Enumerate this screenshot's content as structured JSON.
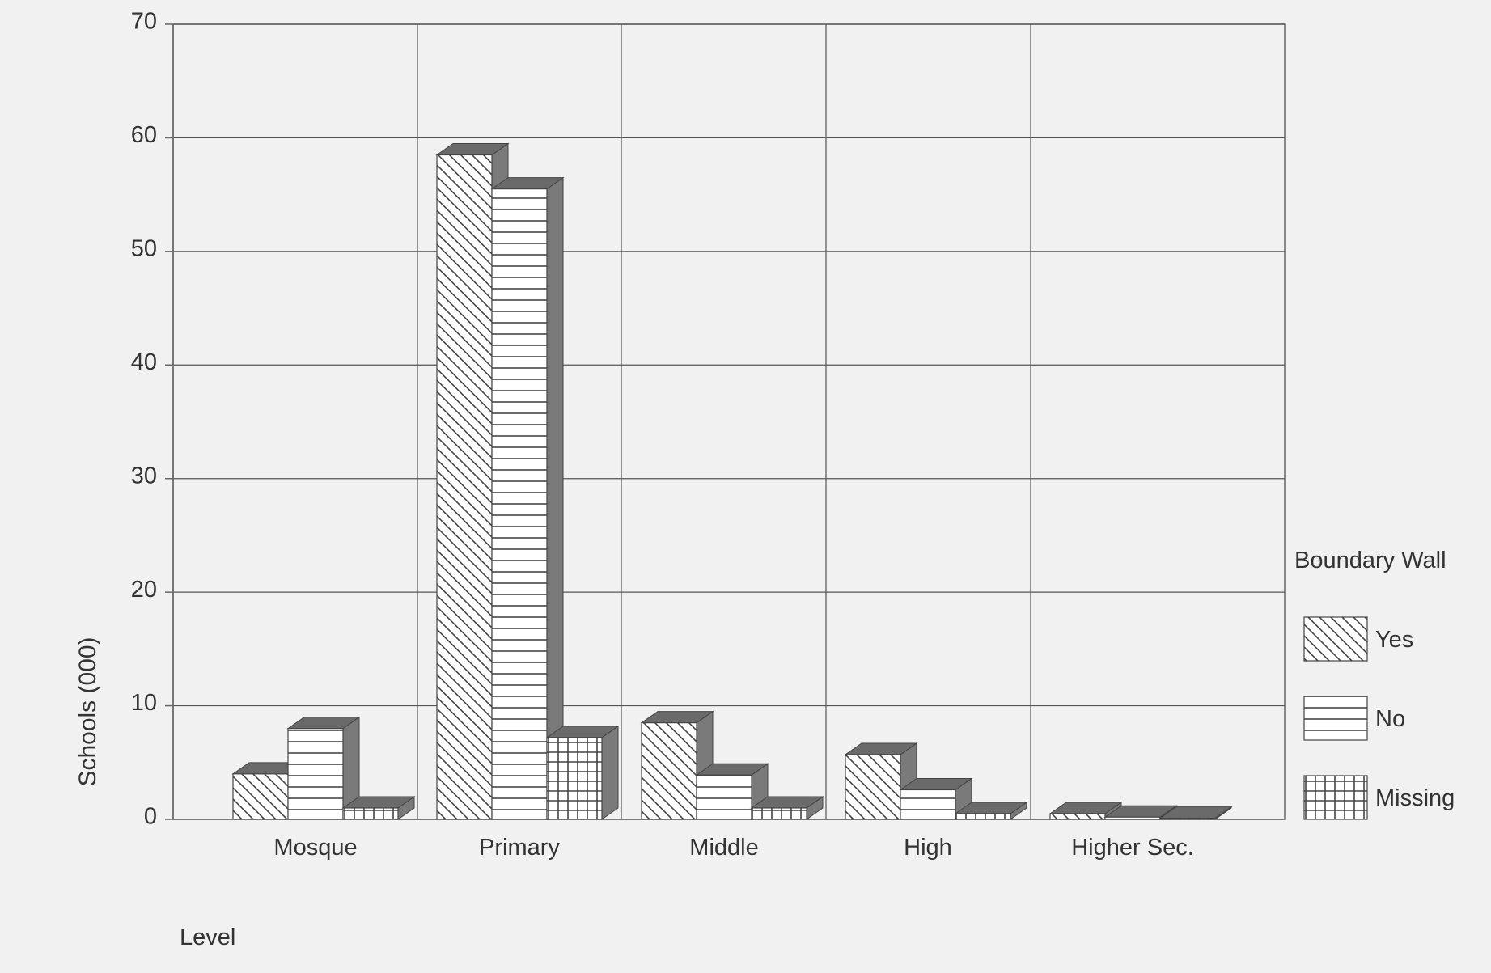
{
  "chart_data": {
    "type": "bar",
    "title": "",
    "xlabel": "Level",
    "ylabel": "Schools (000)",
    "ylim": [
      0,
      70
    ],
    "yticks": [
      0,
      10,
      20,
      30,
      40,
      50,
      60,
      70
    ],
    "grid": true,
    "legend_position": "right",
    "categories": [
      "Mosque",
      "Primary",
      "Middle",
      "High",
      "Higher Sec."
    ],
    "legend_title": "Boundary Wall",
    "series": [
      {
        "name": "Yes",
        "pattern": "diagonal-hatch",
        "values": [
          4,
          58.5,
          8.5,
          5.7,
          0.5
        ]
      },
      {
        "name": "No",
        "pattern": "horizontal-lines",
        "values": [
          8,
          55.5,
          3.9,
          2.6,
          0.2
        ]
      },
      {
        "name": "Missing",
        "pattern": "grid",
        "values": [
          1,
          7.2,
          1,
          0.5,
          0.1
        ]
      }
    ],
    "colors": {
      "background": "#f1f1f1",
      "bar_face": "#ffffff",
      "bar_side": "#7a7a7a",
      "bar_top": "#6a6a6a",
      "grid": "#555555",
      "axis": "#666666"
    }
  }
}
